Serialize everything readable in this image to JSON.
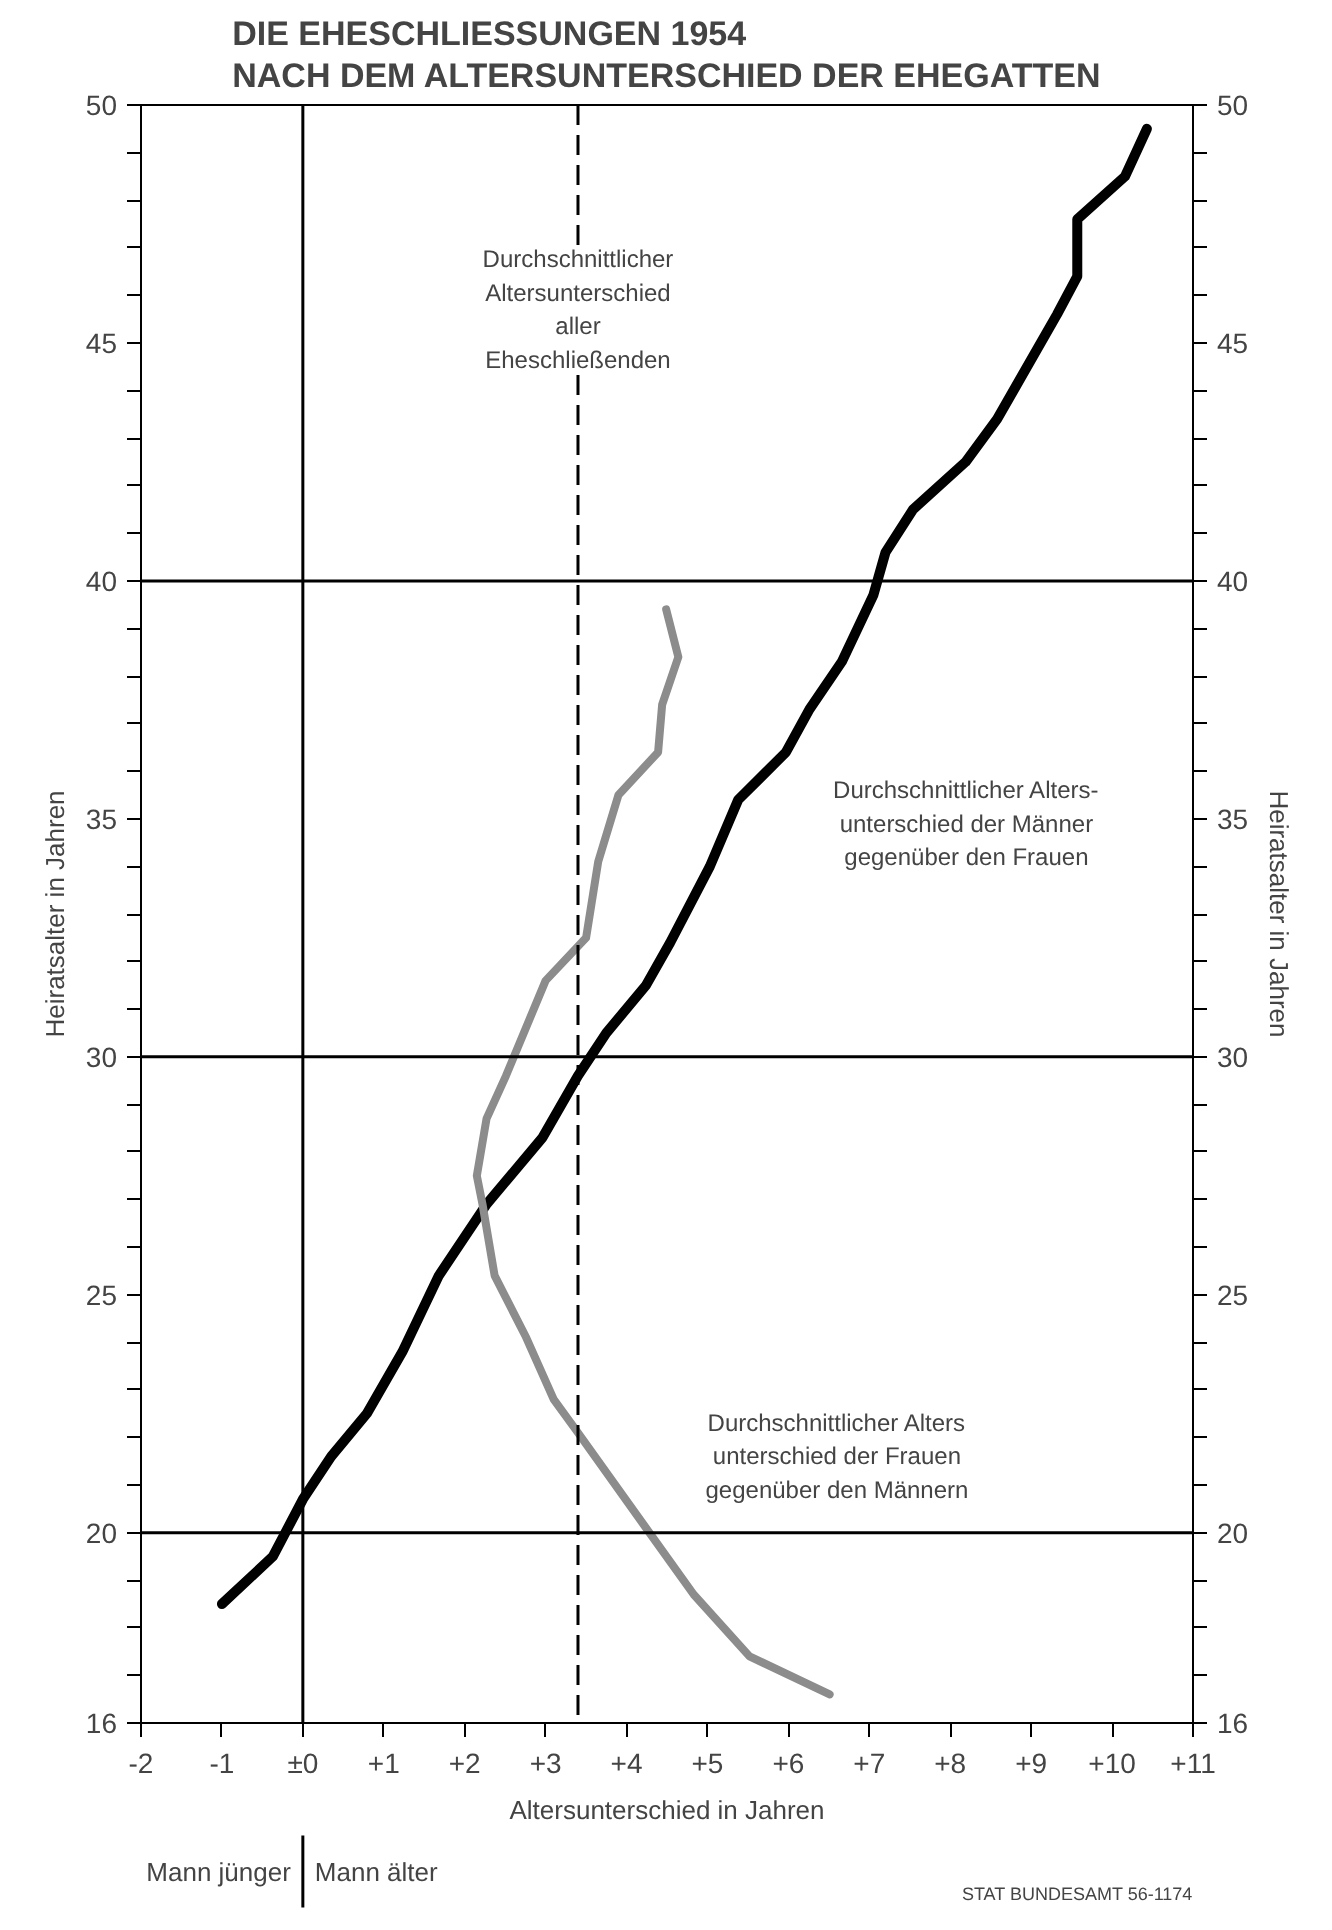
{
  "chart_data": {
    "type": "line",
    "title": "DIE EHESCHLIESSUNGEN 1954\nNACH DEM ALTERSUNTERSCHIED DER EHEGATTEN",
    "xlabel": "Altersunterschied in Jahren",
    "ylabel": "Heiratsalter in Jahren",
    "y2label": "Heiratsalter in Jahren",
    "xlim": [
      -2,
      11
    ],
    "ylim": [
      16,
      50
    ],
    "y2lim": [
      16,
      50
    ],
    "xticks": [
      {
        "value": -2,
        "label": "-2"
      },
      {
        "value": -1,
        "label": "-1"
      },
      {
        "value": 0,
        "label": "±0"
      },
      {
        "value": 1,
        "label": "+1"
      },
      {
        "value": 2,
        "label": "+2"
      },
      {
        "value": 3,
        "label": "+3"
      },
      {
        "value": 4,
        "label": "+4"
      },
      {
        "value": 5,
        "label": "+5"
      },
      {
        "value": 6,
        "label": "+6"
      },
      {
        "value": 7,
        "label": "+7"
      },
      {
        "value": 8,
        "label": "+8"
      },
      {
        "value": 9,
        "label": "+9"
      },
      {
        "value": 10,
        "label": "+10"
      },
      {
        "value": 11,
        "label": "+11"
      }
    ],
    "yticks": [
      16,
      {
        "value": 17,
        "label": null
      },
      {
        "value": 18,
        "label": null
      },
      {
        "value": 19,
        "label": null
      },
      20,
      {
        "value": 21,
        "label": null
      },
      {
        "value": 22,
        "label": null
      },
      {
        "value": 23,
        "label": null
      },
      {
        "value": 24,
        "label": null
      },
      25,
      {
        "value": 26,
        "label": null
      },
      {
        "value": 27,
        "label": null
      },
      {
        "value": 28,
        "label": null
      },
      {
        "value": 29,
        "label": null
      },
      30,
      {
        "value": 31,
        "label": null
      },
      {
        "value": 32,
        "label": null
      },
      {
        "value": 33,
        "label": null
      },
      {
        "value": 34,
        "label": null
      },
      35,
      {
        "value": 36,
        "label": null
      },
      {
        "value": 37,
        "label": null
      },
      {
        "value": 38,
        "label": null
      },
      {
        "value": 39,
        "label": null
      },
      40,
      {
        "value": 41,
        "label": null
      },
      {
        "value": 42,
        "label": null
      },
      {
        "value": 43,
        "label": null
      },
      {
        "value": 44,
        "label": null
      },
      45,
      {
        "value": 46,
        "label": null
      },
      {
        "value": 47,
        "label": null
      },
      {
        "value": 48,
        "label": null
      },
      {
        "value": 49,
        "label": null
      },
      50
    ],
    "y2ticks": [
      16,
      {
        "value": 17,
        "label": null
      },
      {
        "value": 18,
        "label": null
      },
      {
        "value": 19,
        "label": null
      },
      20,
      {
        "value": 21,
        "label": null
      },
      {
        "value": 22,
        "label": null
      },
      {
        "value": 23,
        "label": null
      },
      {
        "value": 24,
        "label": null
      },
      25,
      {
        "value": 26,
        "label": null
      },
      {
        "value": 27,
        "label": null
      },
      {
        "value": 28,
        "label": null
      },
      {
        "value": 29,
        "label": null
      },
      30,
      {
        "value": 31,
        "label": null
      },
      {
        "value": 32,
        "label": null
      },
      {
        "value": 33,
        "label": null
      },
      {
        "value": 34,
        "label": null
      },
      35,
      {
        "value": 36,
        "label": null
      },
      {
        "value": 37,
        "label": null
      },
      {
        "value": 38,
        "label": null
      },
      {
        "value": 39,
        "label": null
      },
      40,
      {
        "value": 41,
        "label": null
      },
      {
        "value": 42,
        "label": null
      },
      {
        "value": 43,
        "label": null
      },
      {
        "value": 44,
        "label": null
      },
      45,
      {
        "value": 46,
        "label": null
      },
      {
        "value": 47,
        "label": null
      },
      {
        "value": 48,
        "label": null
      },
      {
        "value": 49,
        "label": null
      },
      50
    ],
    "series": [
      {
        "color": "#000000",
        "x": [
          -1.0,
          -0.37,
          0.0,
          0.35,
          0.79,
          1.23,
          1.68,
          2.27,
          2.96,
          3.4,
          3.75,
          4.24,
          4.54,
          5.03,
          5.38,
          5.97,
          6.26,
          6.66,
          7.05,
          7.2,
          7.54,
          8.19,
          8.58,
          9.32,
          9.57,
          9.57,
          10.16,
          10.43
        ],
        "values": [
          18.5,
          19.5,
          20.7,
          21.6,
          22.5,
          23.8,
          25.4,
          26.9,
          28.3,
          29.6,
          30.5,
          31.5,
          32.4,
          34.0,
          35.4,
          36.4,
          37.3,
          38.3,
          39.7,
          40.6,
          41.5,
          42.5,
          43.4,
          45.6,
          46.4,
          47.6,
          48.5,
          49.5
        ]
      },
      {
        "color": "#8c8c8c",
        "x": [
          6.51,
          5.52,
          4.83,
          4.24,
          3.4,
          3.1,
          2.76,
          2.37,
          2.22,
          2.15,
          2.27,
          2.51,
          3.0,
          3.5,
          3.65,
          3.9,
          4.39,
          4.44,
          4.64,
          4.49
        ],
        "values": [
          16.6,
          17.4,
          18.7,
          20.1,
          22.1,
          22.8,
          24.1,
          25.4,
          26.9,
          27.5,
          28.7,
          29.6,
          31.6,
          32.5,
          34.1,
          35.5,
          36.4,
          37.4,
          38.4,
          39.4
        ]
      }
    ],
    "ref_lines": [
      {
        "axis": "x",
        "value": 0,
        "color": "#000000"
      },
      {
        "axis": "x",
        "value": 3.4,
        "color": "#000000",
        "line_style": "dashed",
        "label": "Durchschnittlicher\nAltersunterschied\naller\nEheschließenden"
      },
      {
        "axis": "y",
        "value": 20,
        "color": "#000000"
      },
      {
        "axis": "y",
        "value": 30,
        "color": "#000000"
      },
      {
        "axis": "y",
        "value": 40,
        "color": "#000000"
      }
    ],
    "annotations": [
      "Durchschnittlicher Alters-\nunterschied der Männer\ngegenüber den Frauen",
      "Durchschnittlicher Alters\nunterschied der Frauen\ngegenüber den Männern",
      "Mann jünger",
      "Mann älter",
      "STAT BUNDESAMT 56-1174"
    ]
  }
}
